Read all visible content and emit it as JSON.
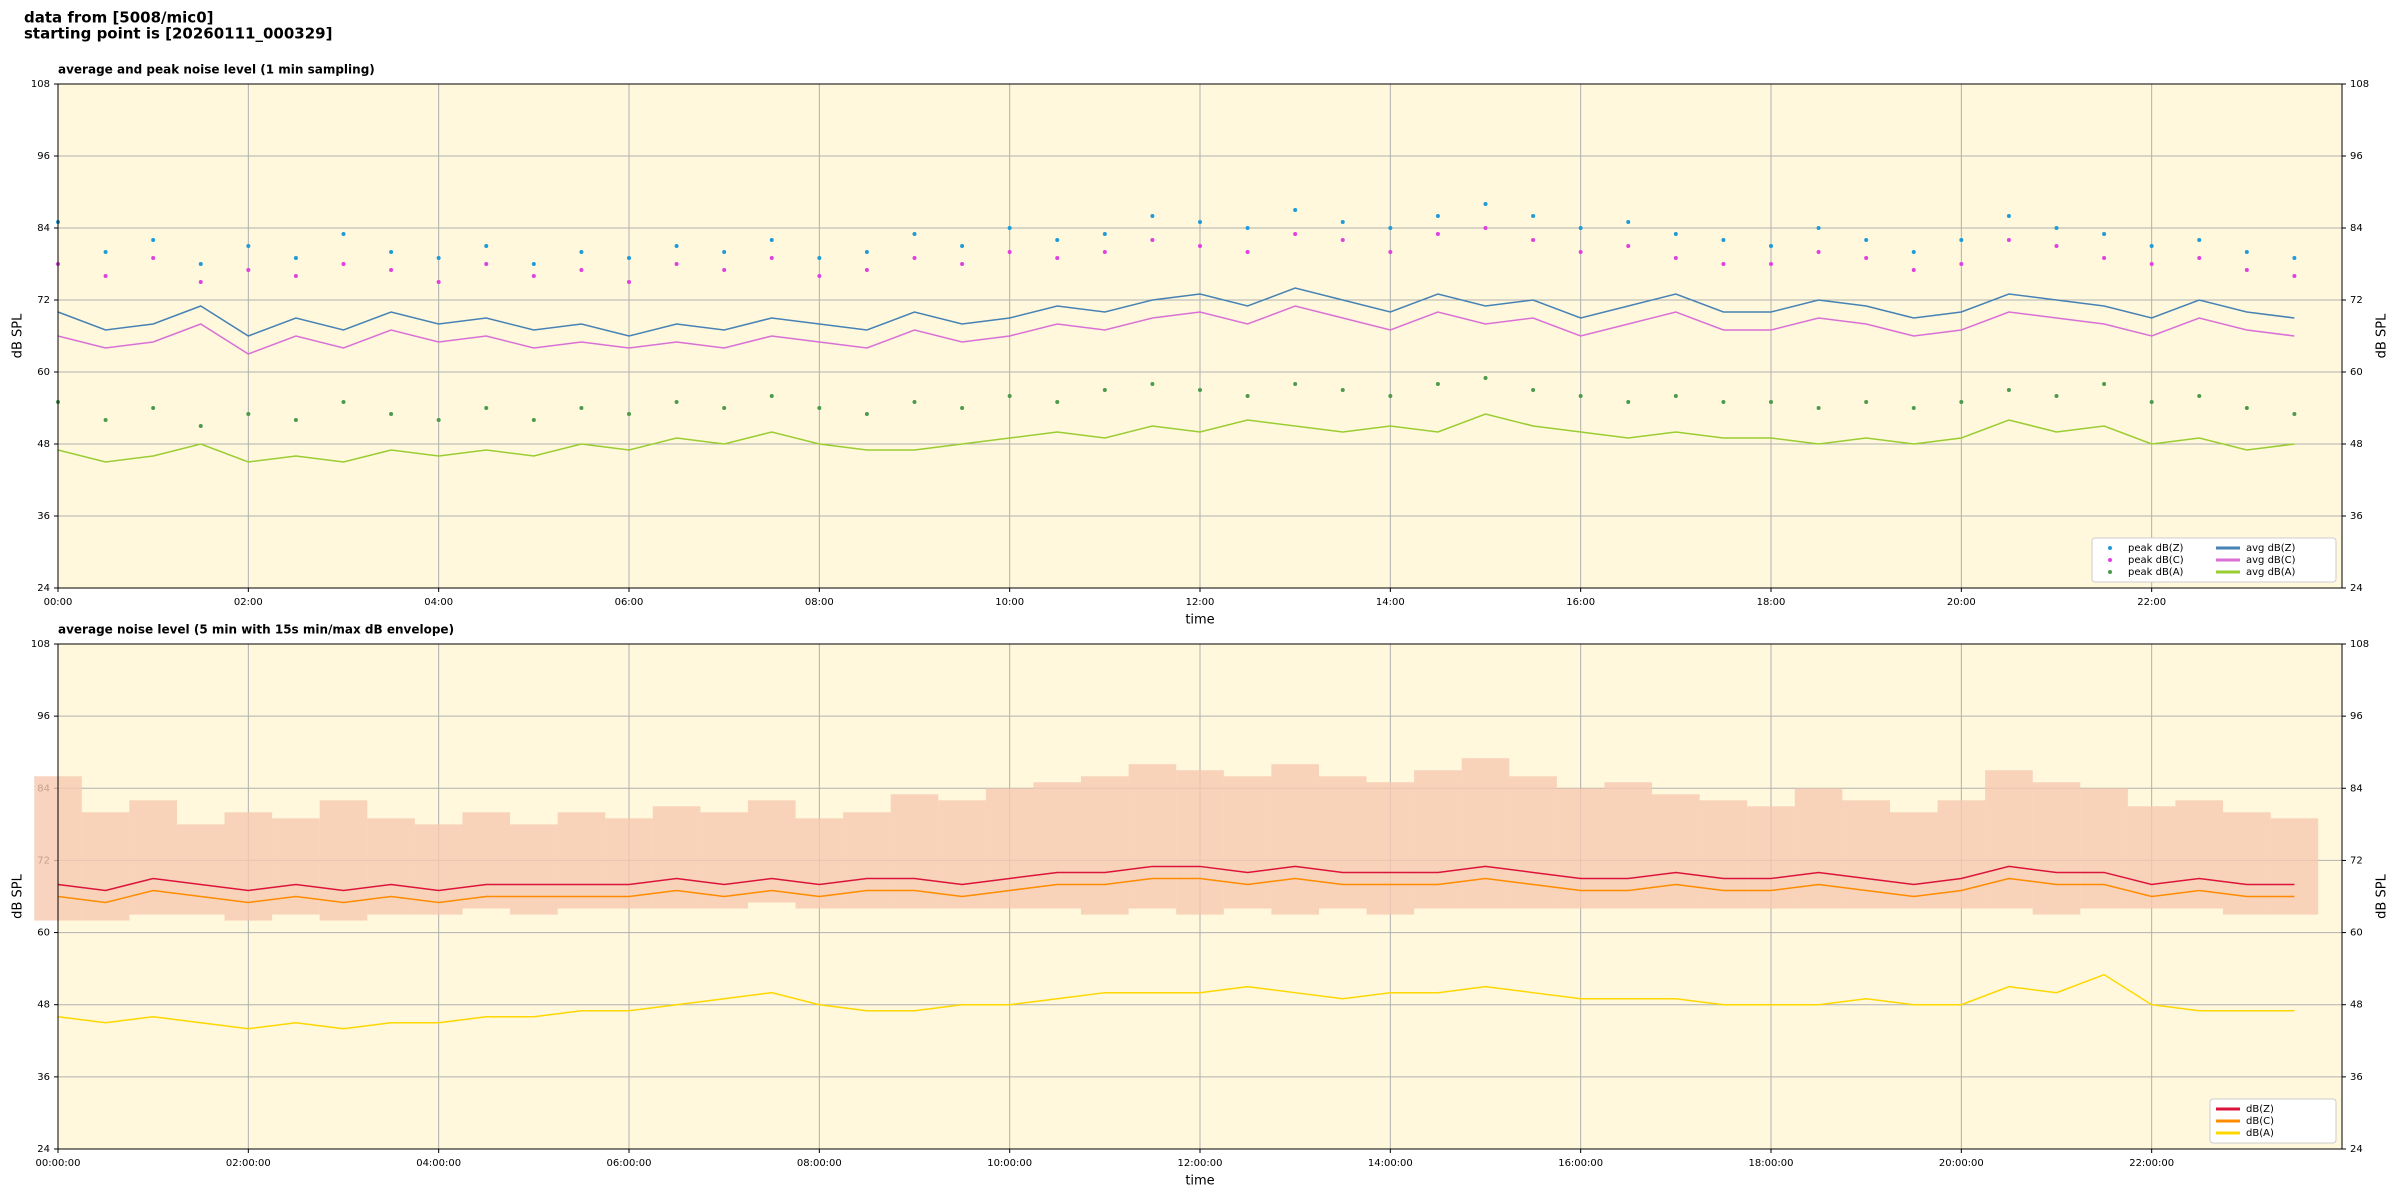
{
  "header": {
    "line1": "data from [5008/mic0]",
    "line2": "starting point is [20260111_000329]"
  },
  "chart_data": [
    {
      "type": "line",
      "title": "average and peak noise level (1 min sampling)",
      "x_label": "time",
      "y_label": "dB SPL",
      "x": [
        0,
        0.5,
        1,
        1.5,
        2,
        2.5,
        3,
        3.5,
        4,
        4.5,
        5,
        5.5,
        6,
        6.5,
        7,
        7.5,
        8,
        8.5,
        9,
        9.5,
        10,
        10.5,
        11,
        11.5,
        12,
        12.5,
        13,
        13.5,
        14,
        14.5,
        15,
        15.5,
        16,
        16.5,
        17,
        17.5,
        18,
        18.5,
        19,
        19.5,
        20,
        20.5,
        21,
        21.5,
        22,
        22.5,
        23,
        23.5
      ],
      "xlim": [
        0,
        24
      ],
      "xticks": [
        {
          "value": 0,
          "label": "00:00"
        },
        {
          "value": 2,
          "label": "02:00"
        },
        {
          "value": 4,
          "label": "04:00"
        },
        {
          "value": 6,
          "label": "06:00"
        },
        {
          "value": 8,
          "label": "08:00"
        },
        {
          "value": 10,
          "label": "10:00"
        },
        {
          "value": 12,
          "label": "12:00"
        },
        {
          "value": 14,
          "label": "14:00"
        },
        {
          "value": 16,
          "label": "16:00"
        },
        {
          "value": 18,
          "label": "18:00"
        },
        {
          "value": 20,
          "label": "20:00"
        },
        {
          "value": 22,
          "label": "22:00"
        }
      ],
      "ylim": [
        24,
        108
      ],
      "yticks": [
        24,
        36,
        48,
        60,
        72,
        84,
        96,
        108
      ],
      "grid": true,
      "legend": "lower right",
      "legend_columns": 2,
      "background": "#fff8dc",
      "series": [
        {
          "name": "peak dB(Z)",
          "style": "points",
          "color": "#1f9bd8",
          "values": [
            85,
            80,
            82,
            78,
            81,
            79,
            83,
            80,
            79,
            81,
            78,
            80,
            79,
            81,
            80,
            82,
            79,
            80,
            83,
            81,
            84,
            82,
            83,
            86,
            85,
            84,
            87,
            85,
            84,
            86,
            88,
            86,
            84,
            85,
            83,
            82,
            81,
            84,
            82,
            80,
            82,
            86,
            84,
            83,
            81,
            82,
            80,
            79
          ]
        },
        {
          "name": "peak dB(C)",
          "style": "points",
          "color": "#e040e0",
          "values": [
            78,
            76,
            79,
            75,
            77,
            76,
            78,
            77,
            75,
            78,
            76,
            77,
            75,
            78,
            77,
            79,
            76,
            77,
            79,
            78,
            80,
            79,
            80,
            82,
            81,
            80,
            83,
            82,
            80,
            83,
            84,
            82,
            80,
            81,
            79,
            78,
            78,
            80,
            79,
            77,
            78,
            82,
            81,
            79,
            78,
            79,
            77,
            76
          ]
        },
        {
          "name": "peak dB(A)",
          "style": "points",
          "color": "#4c9a4c",
          "values": [
            55,
            52,
            54,
            51,
            53,
            52,
            55,
            53,
            52,
            54,
            52,
            54,
            53,
            55,
            54,
            56,
            54,
            53,
            55,
            54,
            56,
            55,
            57,
            58,
            57,
            56,
            58,
            57,
            56,
            58,
            59,
            57,
            56,
            55,
            56,
            55,
            55,
            54,
            55,
            54,
            55,
            57,
            56,
            58,
            55,
            56,
            54,
            53
          ]
        },
        {
          "name": "avg dB(Z)",
          "style": "line",
          "color": "#4682b4",
          "values": [
            70,
            67,
            68,
            71,
            66,
            69,
            67,
            70,
            68,
            69,
            67,
            68,
            66,
            68,
            67,
            69,
            68,
            67,
            70,
            68,
            69,
            71,
            70,
            72,
            73,
            71,
            74,
            72,
            70,
            73,
            71,
            72,
            69,
            71,
            73,
            70,
            70,
            72,
            71,
            69,
            70,
            73,
            72,
            71,
            69,
            72,
            70,
            69
          ]
        },
        {
          "name": "avg dB(C)",
          "style": "line",
          "color": "#da70d6",
          "values": [
            66,
            64,
            65,
            68,
            63,
            66,
            64,
            67,
            65,
            66,
            64,
            65,
            64,
            65,
            64,
            66,
            65,
            64,
            67,
            65,
            66,
            68,
            67,
            69,
            70,
            68,
            71,
            69,
            67,
            70,
            68,
            69,
            66,
            68,
            70,
            67,
            67,
            69,
            68,
            66,
            67,
            70,
            69,
            68,
            66,
            69,
            67,
            66
          ]
        },
        {
          "name": "avg dB(A)",
          "style": "line",
          "color": "#9acd32",
          "values": [
            47,
            45,
            46,
            48,
            45,
            46,
            45,
            47,
            46,
            47,
            46,
            48,
            47,
            49,
            48,
            50,
            48,
            47,
            47,
            48,
            49,
            50,
            49,
            51,
            50,
            52,
            51,
            50,
            51,
            50,
            53,
            51,
            50,
            49,
            50,
            49,
            49,
            48,
            49,
            48,
            49,
            52,
            50,
            51,
            48,
            49,
            47,
            48
          ]
        }
      ]
    },
    {
      "type": "line",
      "title": "average noise level (5 min with 15s min/max dB envelope)",
      "x_label": "time",
      "y_label": "dB SPL",
      "x": [
        0,
        0.5,
        1,
        1.5,
        2,
        2.5,
        3,
        3.5,
        4,
        4.5,
        5,
        5.5,
        6,
        6.5,
        7,
        7.5,
        8,
        8.5,
        9,
        9.5,
        10,
        10.5,
        11,
        11.5,
        12,
        12.5,
        13,
        13.5,
        14,
        14.5,
        15,
        15.5,
        16,
        16.5,
        17,
        17.5,
        18,
        18.5,
        19,
        19.5,
        20,
        20.5,
        21,
        21.5,
        22,
        22.5,
        23,
        23.5
      ],
      "xlim": [
        0,
        24
      ],
      "xticks": [
        {
          "value": 0,
          "label": "00:00:00"
        },
        {
          "value": 2,
          "label": "02:00:00"
        },
        {
          "value": 4,
          "label": "04:00:00"
        },
        {
          "value": 6,
          "label": "06:00:00"
        },
        {
          "value": 8,
          "label": "08:00:00"
        },
        {
          "value": 10,
          "label": "10:00:00"
        },
        {
          "value": 12,
          "label": "12:00:00"
        },
        {
          "value": 14,
          "label": "14:00:00"
        },
        {
          "value": 16,
          "label": "16:00:00"
        },
        {
          "value": 18,
          "label": "18:00:00"
        },
        {
          "value": 20,
          "label": "20:00:00"
        },
        {
          "value": 22,
          "label": "22:00:00"
        }
      ],
      "ylim": [
        24,
        108
      ],
      "yticks": [
        24,
        36,
        48,
        60,
        72,
        84,
        96,
        108
      ],
      "grid": true,
      "legend": "lower right",
      "legend_columns": 1,
      "background": "#fff8dc",
      "envelope": {
        "color": "#f6c8b0",
        "low": [
          62,
          62,
          63,
          63,
          62,
          63,
          62,
          63,
          63,
          64,
          63,
          64,
          64,
          64,
          64,
          65,
          64,
          64,
          64,
          64,
          64,
          64,
          63,
          64,
          63,
          64,
          63,
          64,
          63,
          64,
          64,
          64,
          64,
          64,
          64,
          64,
          64,
          64,
          64,
          64,
          64,
          64,
          63,
          64,
          64,
          64,
          63,
          63
        ],
        "high": [
          86,
          80,
          82,
          78,
          80,
          79,
          82,
          79,
          78,
          80,
          78,
          80,
          79,
          81,
          80,
          82,
          79,
          80,
          83,
          82,
          84,
          85,
          86,
          88,
          87,
          86,
          88,
          86,
          85,
          87,
          89,
          86,
          84,
          85,
          83,
          82,
          81,
          84,
          82,
          80,
          82,
          87,
          85,
          84,
          81,
          82,
          80,
          79
        ]
      },
      "series": [
        {
          "name": "dB(Z)",
          "style": "line",
          "color": "#dc143c",
          "values": [
            68,
            67,
            69,
            68,
            67,
            68,
            67,
            68,
            67,
            68,
            68,
            68,
            68,
            69,
            68,
            69,
            68,
            69,
            69,
            68,
            69,
            70,
            70,
            71,
            71,
            70,
            71,
            70,
            70,
            70,
            71,
            70,
            69,
            69,
            70,
            69,
            69,
            70,
            69,
            68,
            69,
            71,
            70,
            70,
            68,
            69,
            68,
            68
          ]
        },
        {
          "name": "dB(C)",
          "style": "line",
          "color": "#ff8c00",
          "values": [
            66,
            65,
            67,
            66,
            65,
            66,
            65,
            66,
            65,
            66,
            66,
            66,
            66,
            67,
            66,
            67,
            66,
            67,
            67,
            66,
            67,
            68,
            68,
            69,
            69,
            68,
            69,
            68,
            68,
            68,
            69,
            68,
            67,
            67,
            68,
            67,
            67,
            68,
            67,
            66,
            67,
            69,
            68,
            68,
            66,
            67,
            66,
            66
          ]
        },
        {
          "name": "dB(A)",
          "style": "line",
          "color": "#ffd700",
          "values": [
            46,
            45,
            46,
            45,
            44,
            45,
            44,
            45,
            45,
            46,
            46,
            47,
            47,
            48,
            49,
            50,
            48,
            47,
            47,
            48,
            48,
            49,
            50,
            50,
            50,
            51,
            50,
            49,
            50,
            50,
            51,
            50,
            49,
            49,
            49,
            48,
            48,
            48,
            49,
            48,
            48,
            51,
            50,
            53,
            48,
            47,
            47,
            47
          ]
        }
      ]
    }
  ]
}
